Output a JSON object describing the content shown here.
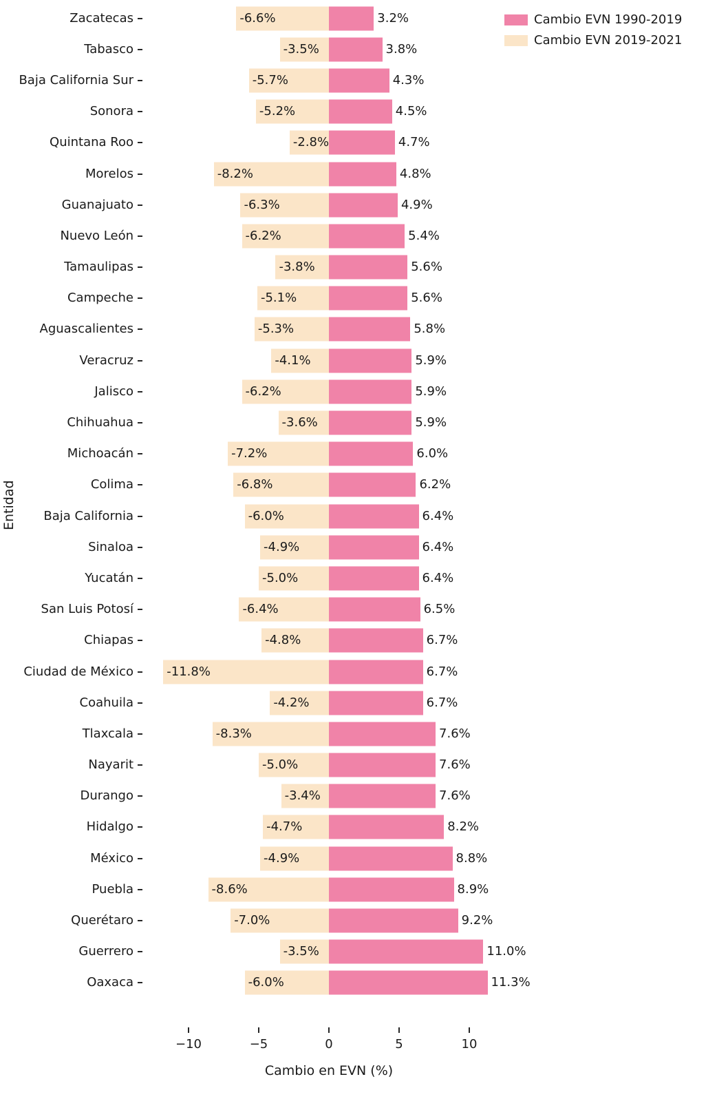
{
  "chart_data": {
    "type": "bar",
    "orientation": "horizontal-diverging",
    "title": "",
    "xlabel": "Cambio en EVN (%)",
    "ylabel": "Entidad",
    "xlim": [
      -12.5,
      12.8
    ],
    "grid": false,
    "legend_position": "upper right",
    "xtick_values": [
      -10,
      -5,
      0,
      5,
      10
    ],
    "xtick_labels": [
      "−10",
      "−5",
      "0",
      "5",
      "10"
    ],
    "categories": [
      "Zacatecas",
      "Tabasco",
      "Baja California Sur",
      "Sonora",
      "Quintana Roo",
      "Morelos",
      "Guanajuato",
      "Nuevo León",
      "Tamaulipas",
      "Campeche",
      "Aguascalientes",
      "Veracruz",
      "Jalisco",
      "Chihuahua",
      "Michoacán",
      "Colima",
      "Baja California",
      "Sinaloa",
      "Yucatán",
      "San Luis Potosí",
      "Chiapas",
      "Ciudad de México",
      "Coahuila",
      "Tlaxcala",
      "Nayarit",
      "Durango",
      "Hidalgo",
      "México",
      "Puebla",
      "Querétaro",
      "Guerrero",
      "Oaxaca"
    ],
    "series": [
      {
        "name": "Cambio EVN 1990-2019",
        "color": "#F083A8",
        "values": [
          3.2,
          3.8,
          4.3,
          4.5,
          4.7,
          4.8,
          4.9,
          5.4,
          5.6,
          5.6,
          5.8,
          5.9,
          5.9,
          5.9,
          6.0,
          6.2,
          6.4,
          6.4,
          6.4,
          6.5,
          6.7,
          6.7,
          6.7,
          7.6,
          7.6,
          7.6,
          8.2,
          8.8,
          8.9,
          9.2,
          11.0,
          11.3
        ]
      },
      {
        "name": "Cambio EVN 2019-2021",
        "color": "#FBE5C8",
        "values": [
          -6.6,
          -3.5,
          -5.7,
          -5.2,
          -2.8,
          -8.2,
          -6.3,
          -6.2,
          -3.8,
          -5.1,
          -5.3,
          -4.1,
          -6.2,
          -3.6,
          -7.2,
          -6.8,
          -6.0,
          -4.9,
          -5.0,
          -6.4,
          -4.8,
          -11.8,
          -4.2,
          -8.3,
          -5.0,
          -3.4,
          -4.7,
          -4.9,
          -8.6,
          -7.0,
          -3.5,
          -6.0
        ]
      }
    ],
    "value_label_format": "{value}%"
  }
}
